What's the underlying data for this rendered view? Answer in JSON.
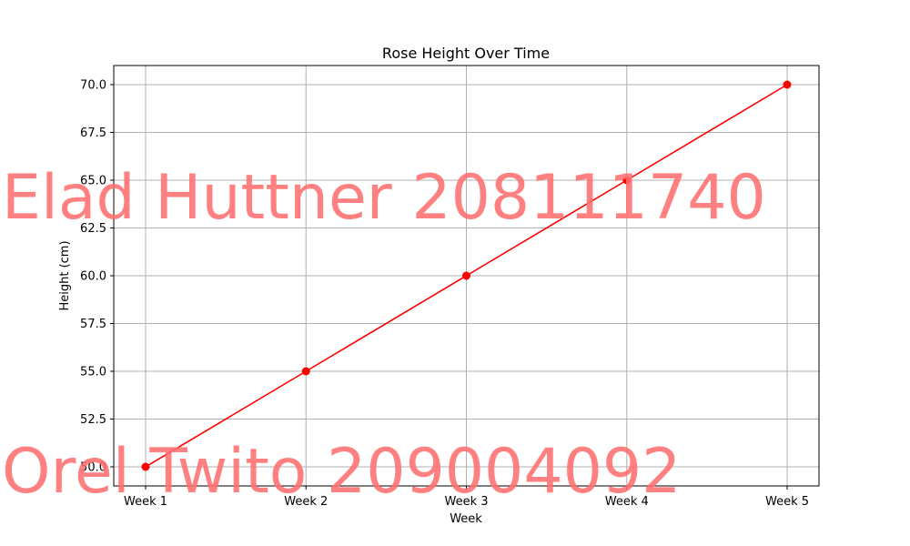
{
  "chart_data": {
    "type": "line",
    "title": "Rose Height Over Time",
    "xlabel": "Week",
    "ylabel": "Height (cm)",
    "categories": [
      "Week 1",
      "Week 2",
      "Week 3",
      "Week 4",
      "Week 5"
    ],
    "series": [
      {
        "values": [
          50,
          55,
          60,
          65,
          70
        ],
        "color": "#ff0000",
        "marker": "circle"
      }
    ],
    "ylim": [
      49,
      71
    ],
    "yticks": [
      50.0,
      52.5,
      55.0,
      57.5,
      60.0,
      62.5,
      65.0,
      67.5,
      70.0
    ],
    "grid": true,
    "legend": "none"
  },
  "watermarks": [
    {
      "text": "Elad Huttner 208111740"
    },
    {
      "text": "Orel Twito 209004092"
    }
  ],
  "colors": {
    "line": "#ff0000",
    "grid": "#b0b0b0",
    "watermark": "#ff6e6e"
  }
}
